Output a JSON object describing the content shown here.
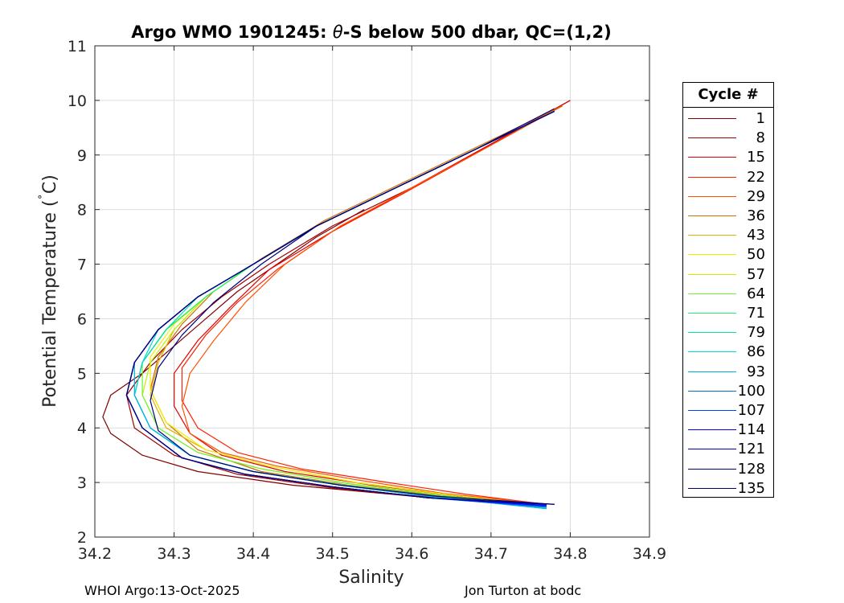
{
  "chart_data": {
    "type": "line",
    "title_prefix": "Argo WMO 1901245: ",
    "title_symbol": "θ",
    "title_suffix": "-S below 500 dbar,  QC=(1,2)",
    "xlabel": "Salinity",
    "ylabel_main": "Potential Temperature (",
    "ylabel_degree": "˚",
    "ylabel_unit": "C)",
    "xlim": [
      34.2,
      34.9
    ],
    "ylim": [
      2,
      11
    ],
    "xticks": [
      "34.2",
      "34.3",
      "34.4",
      "34.5",
      "34.6",
      "34.7",
      "34.8",
      "34.9"
    ],
    "yticks": [
      "2",
      "3",
      "4",
      "5",
      "6",
      "7",
      "8",
      "9",
      "10",
      "11"
    ],
    "grid": true,
    "legend_title": "Cycle #",
    "legend_position": "outside-right",
    "series": [
      {
        "name": "1",
        "color": "#800000",
        "x": [
          34.54,
          34.48,
          34.43,
          34.38,
          34.34,
          34.3,
          34.26,
          34.22,
          34.21,
          34.22,
          34.26,
          34.33,
          34.45,
          34.6,
          34.78
        ],
        "y": [
          8.0,
          7.5,
          7.0,
          6.5,
          6.0,
          5.5,
          5.0,
          4.6,
          4.2,
          3.9,
          3.5,
          3.2,
          2.95,
          2.75,
          2.6
        ]
      },
      {
        "name": "8",
        "color": "#a00000",
        "x": [
          34.8,
          34.7,
          34.6,
          34.5,
          34.42,
          34.36,
          34.31,
          34.27,
          34.24,
          34.25,
          34.3,
          34.38,
          34.5,
          34.63,
          34.77
        ],
        "y": [
          10.0,
          9.2,
          8.4,
          7.7,
          7.0,
          6.4,
          5.8,
          5.2,
          4.6,
          4.0,
          3.5,
          3.15,
          2.9,
          2.72,
          2.6
        ]
      },
      {
        "name": "15",
        "color": "#e00000",
        "x": [
          34.8,
          34.7,
          34.6,
          34.5,
          34.42,
          34.37,
          34.33,
          34.3,
          34.3,
          34.32,
          34.36,
          34.44,
          34.55,
          34.66,
          34.77
        ],
        "y": [
          10.0,
          9.2,
          8.4,
          7.6,
          6.9,
          6.2,
          5.6,
          5.0,
          4.4,
          3.9,
          3.5,
          3.2,
          2.95,
          2.75,
          2.6
        ]
      },
      {
        "name": "22",
        "color": "#ff2000",
        "x": [
          34.79,
          34.69,
          34.59,
          34.5,
          34.43,
          34.38,
          34.34,
          34.31,
          34.31,
          34.33,
          34.38,
          34.46,
          34.57,
          34.67,
          34.77
        ],
        "y": [
          9.9,
          9.1,
          8.3,
          7.6,
          6.9,
          6.3,
          5.7,
          5.1,
          4.5,
          4.0,
          3.55,
          3.25,
          3.0,
          2.78,
          2.6
        ]
      },
      {
        "name": "29",
        "color": "#ff5000",
        "x": [
          34.79,
          34.69,
          34.6,
          34.51,
          34.44,
          34.39,
          34.35,
          34.32,
          34.31,
          34.32,
          34.36,
          34.43,
          34.53,
          34.64,
          34.77
        ],
        "y": [
          9.9,
          9.1,
          8.4,
          7.7,
          7.0,
          6.3,
          5.6,
          5.0,
          4.4,
          3.9,
          3.55,
          3.3,
          3.05,
          2.8,
          2.6
        ]
      },
      {
        "name": "36",
        "color": "#d07000",
        "x": [
          34.79,
          34.69,
          34.59,
          34.49,
          34.41,
          34.35,
          34.31,
          34.28,
          34.27,
          34.29,
          34.33,
          34.41,
          34.52,
          34.64,
          34.77
        ],
        "y": [
          9.9,
          9.2,
          8.5,
          7.8,
          7.1,
          6.5,
          5.9,
          5.3,
          4.7,
          4.1,
          3.6,
          3.2,
          2.95,
          2.75,
          2.6
        ]
      },
      {
        "name": "43",
        "color": "#e0b000",
        "x": [
          34.78,
          34.68,
          34.58,
          34.48,
          34.4,
          34.34,
          34.3,
          34.28,
          34.27,
          34.29,
          34.34,
          34.42,
          34.53,
          34.65,
          34.77
        ],
        "y": [
          9.8,
          9.1,
          8.4,
          7.7,
          7.0,
          6.4,
          5.8,
          5.2,
          4.6,
          4.0,
          3.6,
          3.3,
          3.0,
          2.77,
          2.58
        ]
      },
      {
        "name": "50",
        "color": "#f0f000",
        "x": [
          34.78,
          34.68,
          34.58,
          34.48,
          34.4,
          34.34,
          34.3,
          34.27,
          34.27,
          34.29,
          34.34,
          34.42,
          34.53,
          34.65,
          34.77
        ],
        "y": [
          9.8,
          9.1,
          8.4,
          7.7,
          7.0,
          6.4,
          5.9,
          5.3,
          4.7,
          4.1,
          3.6,
          3.3,
          3.0,
          2.77,
          2.58
        ]
      },
      {
        "name": "57",
        "color": "#c0f000",
        "x": [
          34.78,
          34.68,
          34.58,
          34.48,
          34.4,
          34.34,
          34.3,
          34.27,
          34.26,
          34.28,
          34.33,
          34.41,
          34.52,
          34.64,
          34.77
        ],
        "y": [
          9.8,
          9.1,
          8.4,
          7.7,
          7.0,
          6.4,
          5.8,
          5.2,
          4.6,
          4.0,
          3.55,
          3.25,
          2.98,
          2.76,
          2.57
        ]
      },
      {
        "name": "64",
        "color": "#70f030",
        "x": [
          34.78,
          34.68,
          34.58,
          34.48,
          34.4,
          34.34,
          34.29,
          34.26,
          34.26,
          34.28,
          34.33,
          34.41,
          34.52,
          34.64,
          34.77
        ],
        "y": [
          9.8,
          9.1,
          8.4,
          7.7,
          7.0,
          6.4,
          5.8,
          5.2,
          4.6,
          4.0,
          3.55,
          3.25,
          2.98,
          2.76,
          2.56
        ]
      },
      {
        "name": "71",
        "color": "#20f070",
        "x": [
          34.78,
          34.68,
          34.58,
          34.48,
          34.4,
          34.34,
          34.29,
          34.26,
          34.25,
          34.27,
          34.32,
          34.4,
          34.51,
          34.63,
          34.77
        ],
        "y": [
          9.8,
          9.1,
          8.4,
          7.7,
          7.0,
          6.4,
          5.8,
          5.2,
          4.6,
          4.0,
          3.5,
          3.2,
          2.96,
          2.75,
          2.55
        ]
      },
      {
        "name": "79",
        "color": "#00e0a0",
        "x": [
          34.78,
          34.68,
          34.58,
          34.48,
          34.4,
          34.33,
          34.29,
          34.26,
          34.25,
          34.27,
          34.32,
          34.4,
          34.51,
          34.63,
          34.77
        ],
        "y": [
          9.8,
          9.1,
          8.4,
          7.7,
          7.0,
          6.4,
          5.8,
          5.2,
          4.6,
          4.0,
          3.5,
          3.2,
          2.95,
          2.74,
          2.54
        ]
      },
      {
        "name": "86",
        "color": "#00d8d8",
        "x": [
          34.78,
          34.68,
          34.58,
          34.48,
          34.4,
          34.33,
          34.28,
          34.26,
          34.25,
          34.27,
          34.32,
          34.4,
          34.51,
          34.63,
          34.77
        ],
        "y": [
          9.8,
          9.1,
          8.4,
          7.7,
          7.0,
          6.4,
          5.8,
          5.2,
          4.6,
          4.0,
          3.5,
          3.2,
          2.95,
          2.73,
          2.52
        ]
      },
      {
        "name": "93",
        "color": "#00b0e0",
        "x": [
          34.78,
          34.68,
          34.58,
          34.48,
          34.4,
          34.33,
          34.28,
          34.25,
          34.25,
          34.27,
          34.32,
          34.4,
          34.51,
          34.63,
          34.77
        ],
        "y": [
          9.8,
          9.1,
          8.4,
          7.7,
          7.0,
          6.4,
          5.8,
          5.2,
          4.6,
          4.0,
          3.5,
          3.2,
          2.95,
          2.73,
          2.52
        ]
      },
      {
        "name": "100",
        "color": "#0070d0",
        "x": [
          34.78,
          34.68,
          34.58,
          34.48,
          34.4,
          34.33,
          34.28,
          34.25,
          34.24,
          34.26,
          34.31,
          34.39,
          34.5,
          34.62,
          34.77
        ],
        "y": [
          9.8,
          9.1,
          8.4,
          7.7,
          7.0,
          6.4,
          5.8,
          5.2,
          4.6,
          4.0,
          3.45,
          3.15,
          2.92,
          2.72,
          2.55
        ]
      },
      {
        "name": "107",
        "color": "#0040ff",
        "x": [
          34.78,
          34.68,
          34.58,
          34.48,
          34.4,
          34.33,
          34.28,
          34.25,
          34.24,
          34.26,
          34.31,
          34.39,
          34.5,
          34.62,
          34.77
        ],
        "y": [
          9.8,
          9.1,
          8.4,
          7.7,
          7.0,
          6.4,
          5.8,
          5.2,
          4.6,
          4.0,
          3.45,
          3.15,
          2.92,
          2.72,
          2.56
        ]
      },
      {
        "name": "114",
        "color": "#0000ff",
        "x": [
          34.78,
          34.68,
          34.58,
          34.48,
          34.4,
          34.33,
          34.28,
          34.25,
          34.24,
          34.26,
          34.31,
          34.39,
          34.5,
          34.62,
          34.77
        ],
        "y": [
          9.8,
          9.1,
          8.4,
          7.7,
          7.0,
          6.4,
          5.8,
          5.2,
          4.6,
          4.0,
          3.45,
          3.15,
          2.92,
          2.72,
          2.58
        ]
      },
      {
        "name": "121",
        "color": "#0000c0",
        "x": [
          34.78,
          34.68,
          34.58,
          34.48,
          34.4,
          34.33,
          34.28,
          34.25,
          34.24,
          34.26,
          34.31,
          34.39,
          34.5,
          34.62,
          34.77
        ],
        "y": [
          9.8,
          9.1,
          8.4,
          7.7,
          7.0,
          6.4,
          5.8,
          5.2,
          4.6,
          4.0,
          3.45,
          3.15,
          2.92,
          2.72,
          2.6
        ]
      },
      {
        "name": "128",
        "color": "#000080",
        "x": [
          34.78,
          34.68,
          34.58,
          34.48,
          34.41,
          34.35,
          34.31,
          34.28,
          34.27,
          34.28,
          34.32,
          34.4,
          34.51,
          34.63,
          34.78
        ],
        "y": [
          9.8,
          9.1,
          8.4,
          7.7,
          7.0,
          6.3,
          5.7,
          5.1,
          4.5,
          3.95,
          3.5,
          3.2,
          2.95,
          2.75,
          2.6
        ]
      },
      {
        "name": "135",
        "color": "#000070",
        "x": [
          34.78,
          34.68,
          34.58,
          34.48,
          34.4,
          34.33,
          34.28,
          34.25,
          34.24,
          34.26,
          34.31,
          34.39,
          34.5,
          34.62,
          34.78
        ],
        "y": [
          9.85,
          9.1,
          8.4,
          7.7,
          7.0,
          6.4,
          5.8,
          5.2,
          4.6,
          4.0,
          3.45,
          3.15,
          2.92,
          2.72,
          2.6
        ]
      }
    ]
  },
  "footer": {
    "left": "WHOI Argo:13-Oct-2025",
    "right": "Jon Turton at bodc"
  }
}
